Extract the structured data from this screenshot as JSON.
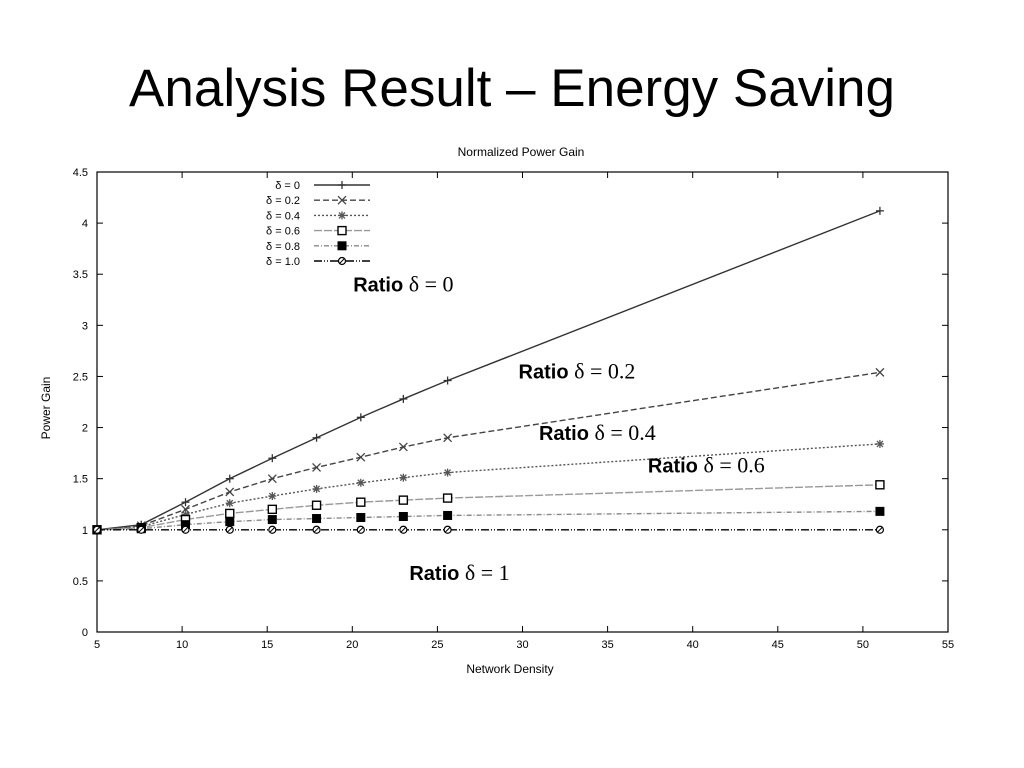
{
  "slide": {
    "title": "Analysis Result – Energy Saving"
  },
  "chart_data": {
    "type": "line",
    "title": "Normalized Power Gain",
    "xlabel": "Network Density",
    "ylabel": "Power Gain",
    "xlim": [
      5,
      55
    ],
    "ylim": [
      0,
      4.5
    ],
    "xticks": [
      5,
      10,
      15,
      20,
      25,
      30,
      35,
      40,
      45,
      50,
      55
    ],
    "yticks": [
      0,
      0.5,
      1,
      1.5,
      2,
      2.5,
      3,
      3.5,
      4,
      4.5
    ],
    "grid": false,
    "legend_position": "top-left",
    "series": [
      {
        "name": "δ = 0",
        "marker": "plus",
        "dash": "",
        "color": "#333333",
        "x": [
          5,
          7.6,
          10.2,
          12.8,
          15.3,
          17.9,
          20.5,
          23,
          25.6,
          51
        ],
        "y": [
          1,
          1.05,
          1.27,
          1.5,
          1.7,
          1.9,
          2.1,
          2.28,
          2.46,
          4.12
        ]
      },
      {
        "name": "δ = 0.2",
        "marker": "x",
        "dash": "6,3",
        "color": "#444444",
        "x": [
          5,
          7.6,
          10.2,
          12.8,
          15.3,
          17.9,
          20.5,
          23,
          25.6,
          51
        ],
        "y": [
          1,
          1.04,
          1.2,
          1.37,
          1.5,
          1.61,
          1.71,
          1.81,
          1.9,
          2.54
        ]
      },
      {
        "name": "δ = 0.4",
        "marker": "star",
        "dash": "2,2",
        "color": "#555555",
        "x": [
          5,
          7.6,
          10.2,
          12.8,
          15.3,
          17.9,
          20.5,
          23,
          25.6,
          51
        ],
        "y": [
          1,
          1.03,
          1.15,
          1.26,
          1.33,
          1.4,
          1.46,
          1.51,
          1.56,
          1.84
        ]
      },
      {
        "name": "δ = 0.6",
        "marker": "open-square",
        "dash": "8,2",
        "color": "#999999",
        "x": [
          5,
          7.6,
          10.2,
          12.8,
          15.3,
          17.9,
          20.5,
          23,
          25.6,
          51
        ],
        "y": [
          1,
          1.02,
          1.1,
          1.16,
          1.2,
          1.24,
          1.27,
          1.29,
          1.31,
          1.44
        ]
      },
      {
        "name": "δ = 0.8",
        "marker": "filled-square",
        "dash": "5,2,1,2",
        "color": "#888888",
        "x": [
          5,
          7.6,
          10.2,
          12.8,
          15.3,
          17.9,
          20.5,
          23,
          25.6,
          51
        ],
        "y": [
          1,
          1.01,
          1.05,
          1.08,
          1.1,
          1.11,
          1.12,
          1.13,
          1.14,
          1.18
        ]
      },
      {
        "name": "δ = 1.0",
        "marker": "circle",
        "dash": "8,2,1,2,1,2",
        "color": "#000000",
        "x": [
          5,
          7.6,
          10.2,
          12.8,
          15.3,
          17.9,
          20.5,
          23,
          25.6,
          51
        ],
        "y": [
          1,
          1,
          1,
          1,
          1,
          1,
          1,
          1,
          1,
          1
        ]
      }
    ],
    "annotations": [
      {
        "text": "Ratio ",
        "math": "δ = 0",
        "x": 23,
        "y": 3.33
      },
      {
        "text": "Ratio ",
        "math": "δ = 0.2",
        "x": 33.2,
        "y": 2.48
      },
      {
        "text": "Ratio ",
        "math": "δ = 0.4",
        "x": 34.4,
        "y": 1.88
      },
      {
        "text": "Ratio ",
        "math": "δ = 0.6",
        "x": 40.8,
        "y": 1.56
      },
      {
        "text": "Ratio ",
        "math": "δ = 1",
        "x": 26.3,
        "y": 0.51
      }
    ]
  }
}
